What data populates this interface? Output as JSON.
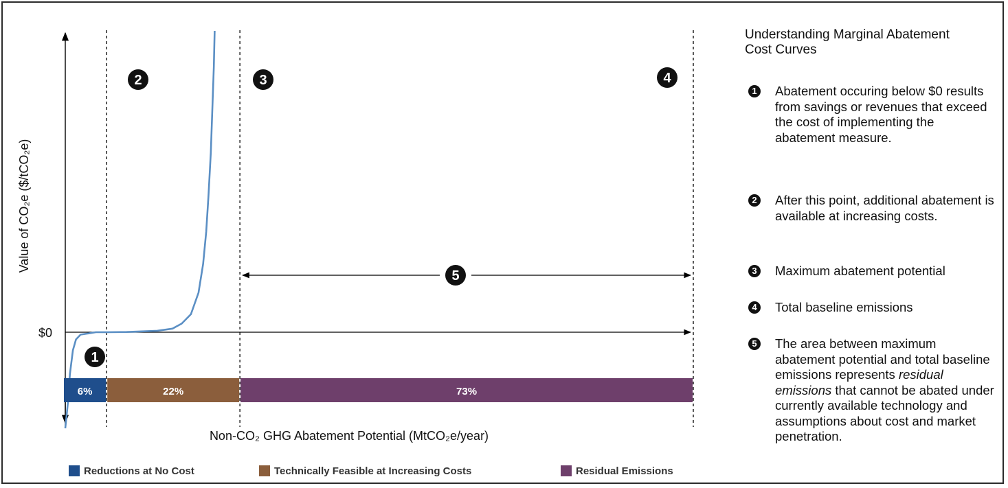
{
  "chart_data": {
    "type": "line",
    "y_axis": {
      "label": "Value of CO₂e ($/tCO₂e)",
      "tick_label": "$0"
    },
    "x_axis": {
      "label": "Non-CO₂ GHG Abatement Potential (MtCO₂e/year)"
    },
    "curve": {
      "x": [
        0,
        2,
        3,
        5,
        7,
        10,
        15,
        20,
        28,
        40,
        60,
        70,
        76,
        82,
        87,
        90,
        92,
        93.5,
        95,
        96,
        97,
        97.5
      ],
      "y": [
        -80,
        -55,
        -35,
        -15,
        -6,
        -2,
        -1,
        0,
        0,
        0.3,
        2,
        5,
        12,
        25,
        55,
        95,
        140,
        190,
        250,
        310,
        370,
        420
      ]
    },
    "x_max": 410,
    "markers": [
      {
        "id": "1",
        "x": 27
      },
      {
        "id": "2",
        "x": 27
      },
      {
        "id": "3",
        "x": 114
      },
      {
        "id": "4",
        "x": 410
      },
      {
        "id": "5",
        "x_start": 114,
        "x_end": 410
      }
    ],
    "bar": [
      {
        "label": "6%",
        "value": 6,
        "x_start": 0,
        "x_end": 27,
        "color": "#1f4e8c"
      },
      {
        "label": "22%",
        "value": 22,
        "x_start": 27,
        "x_end": 114,
        "color": "#8b5e3c"
      },
      {
        "label": "73%",
        "value": 73,
        "x_start": 114,
        "x_end": 410,
        "color": "#6e3f6b"
      }
    ],
    "legend": [
      {
        "label": "Reductions at No Cost",
        "color": "#1f4e8c"
      },
      {
        "label": "Technically Feasible at Increasing Costs",
        "color": "#8b5e3c"
      },
      {
        "label": "Residual Emissions",
        "color": "#6e3f6b"
      }
    ],
    "curve_color": "#5b8fc4"
  },
  "side": {
    "title": "Understanding Marginal Abatement Cost Curves",
    "notes": [
      {
        "num": "1",
        "text": "Abatement occuring below $0 results from savings or revenues that exceed the cost of implementing the abatement measure."
      },
      {
        "num": "2",
        "text": "After this point, additional abatement is available at increasing costs."
      },
      {
        "num": "3",
        "text": "Maximum abatement potential"
      },
      {
        "num": "4",
        "text": "Total baseline emissions"
      },
      {
        "num": "5",
        "text_parts": [
          "The area between maximum abatement potential and total baseline emissions represents ",
          "residual emissions",
          " that cannot be abated under currently available technology and assumptions about cost and market penetration."
        ]
      }
    ]
  }
}
